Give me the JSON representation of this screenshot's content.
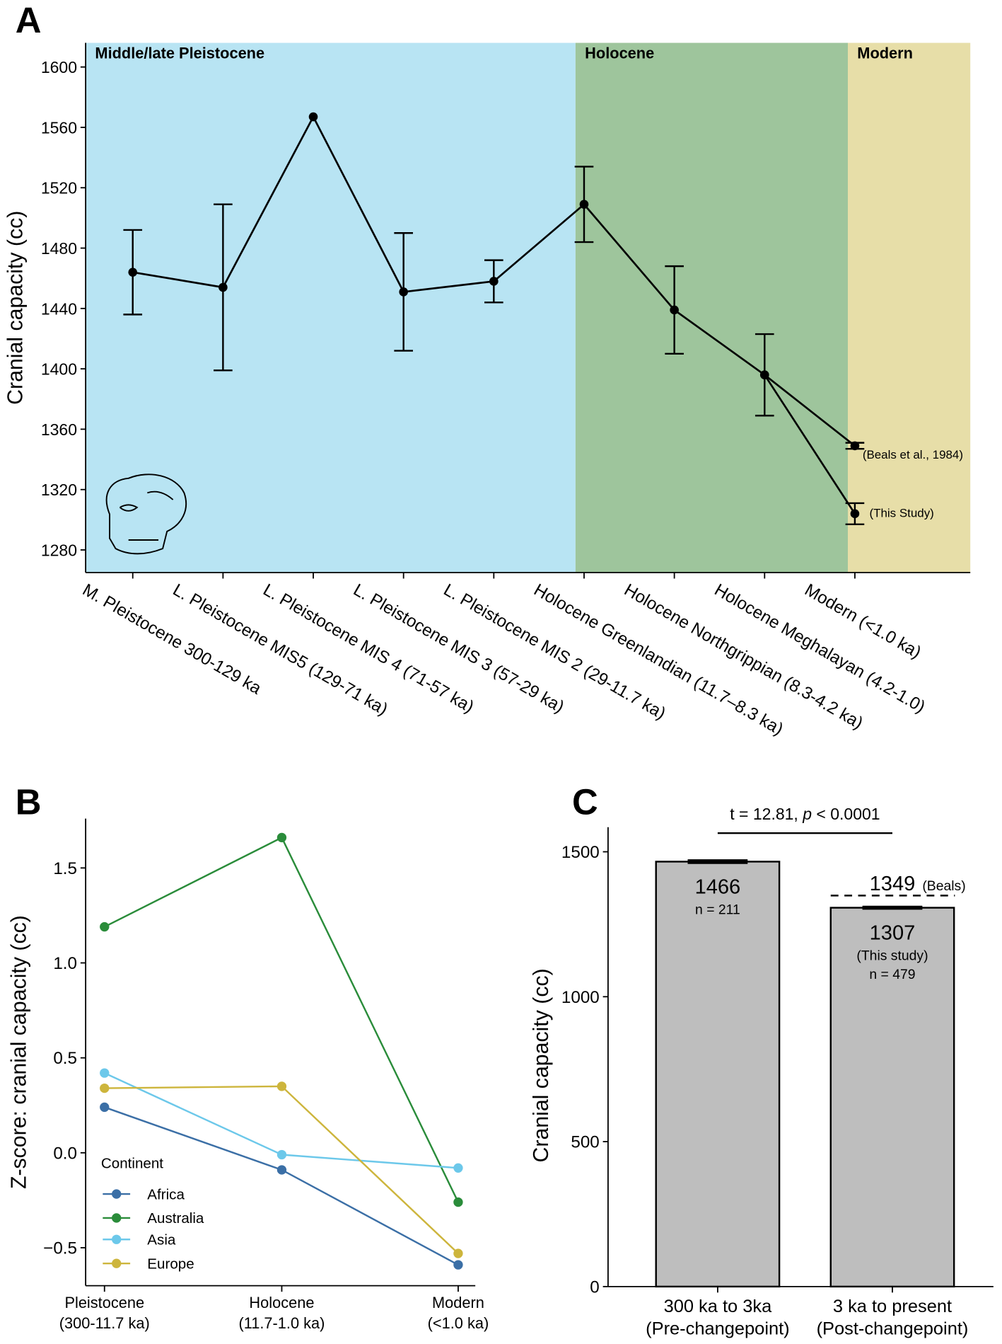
{
  "chart_data": [
    {
      "type": "line",
      "panel": "A",
      "ylabel": "Cranial capacity (cc)",
      "categories": [
        "M. Pleistocene 300-129 ka",
        "L. Pleistocene MIS5 (129-71 ka)",
        "L. Pleistocene MIS 4 (71-57 ka)",
        "L. Pleistocene MIS 3 (57-29 ka)",
        "L. Pleistocene MIS 2 (29-11.7 ka)",
        "Holocene Greenlandian (11.7–8.3 ka)",
        "Holocene Northgrippian (8.3-4.2 ka)",
        "Holocene Meghalayan (4.2-1.0)",
        "Modern (<1.0 ka)"
      ],
      "periods": [
        {
          "label": "Middle/late Pleistocene",
          "color": "#b8e4f3"
        },
        {
          "label": "Holocene",
          "color": "#9ec59c"
        },
        {
          "label": "Modern",
          "color": "#e7dea8"
        }
      ],
      "series": [
        {
          "color": "#000000",
          "values": [
            1464,
            1454,
            1567,
            1451,
            1458,
            1509,
            1439,
            1396,
            1304
          ],
          "errors": [
            28,
            55,
            null,
            39,
            14,
            25,
            29,
            27,
            7
          ],
          "end_label": "(This Study)"
        },
        {
          "color": "#000000",
          "values": [
            null,
            null,
            null,
            null,
            null,
            null,
            null,
            1396,
            1349
          ],
          "errors": [
            null,
            null,
            null,
            null,
            null,
            null,
            null,
            null,
            2
          ],
          "end_label": "(Beals et al., 1984)"
        }
      ],
      "ylim": [
        1265,
        1616
      ],
      "yticks": [
        1280,
        1320,
        1360,
        1400,
        1440,
        1480,
        1520,
        1560,
        1600
      ]
    },
    {
      "type": "line",
      "panel": "B",
      "ylabel": "Z-score: cranial capacity (cc)",
      "categories": [
        [
          "Pleistocene",
          "(300-11.7 ka)"
        ],
        [
          "Holocene",
          "(11.7-1.0 ka)"
        ],
        [
          "Modern",
          "(<1.0 ka)"
        ]
      ],
      "legend_title": "Continent",
      "legend_position": "lower left",
      "series": [
        {
          "name": "Africa",
          "color": "#3b6fa6",
          "values": [
            0.24,
            -0.09,
            -0.59
          ]
        },
        {
          "name": "Australia",
          "color": "#2a8c3a",
          "values": [
            1.19,
            1.66,
            -0.26
          ]
        },
        {
          "name": "Asia",
          "color": "#6cc8ea",
          "values": [
            0.42,
            -0.01,
            -0.08
          ]
        },
        {
          "name": "Europe",
          "color": "#cdb53c",
          "values": [
            0.34,
            0.35,
            -0.53
          ]
        }
      ],
      "ylim": [
        -0.7,
        1.76
      ],
      "yticks": [
        {
          "value": -0.5,
          "label": "−0.5"
        },
        {
          "value": 0,
          "label": "0.0"
        },
        0.5,
        {
          "value": 1,
          "label": "1.0"
        },
        1.5
      ]
    },
    {
      "type": "bar",
      "panel": "C",
      "ylabel": "Cranial capacity (cc)",
      "categories": [
        [
          "300 ka to 3ka",
          "(Pre-changepoint)"
        ],
        [
          "3 ka to present",
          "(Post-changepoint)"
        ]
      ],
      "values": [
        1466,
        1307
      ],
      "errors": [
        5,
        4
      ],
      "notes": [
        [
          "n = 211"
        ],
        [
          "(This study)",
          "n = 479"
        ]
      ],
      "color": "#bebebe",
      "reference": {
        "value": 1349,
        "label": "(Beals)"
      },
      "annotation_parts": [
        "t = 12.81, ",
        "p",
        " < 0.0001"
      ],
      "ylim": [
        0,
        1585
      ],
      "yticks": [
        0,
        500,
        1000,
        1500
      ]
    }
  ]
}
